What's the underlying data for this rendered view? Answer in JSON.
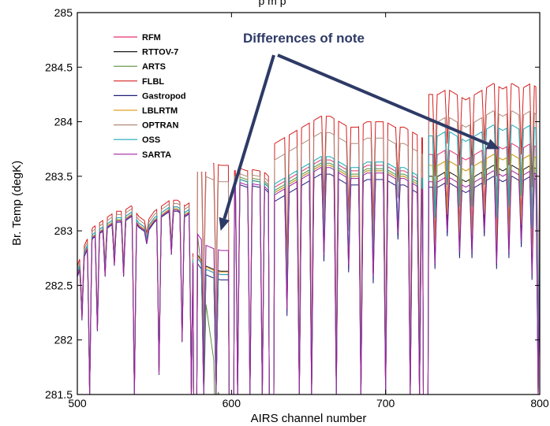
{
  "chart_data": {
    "type": "line",
    "title_fragment": "p   m   p",
    "xlabel": "AIRS channel number",
    "ylabel": "Br. Temp (degK)",
    "xlim": [
      500,
      800
    ],
    "ylim": [
      281.5,
      285
    ],
    "x_ticks": [
      500,
      600,
      700,
      800
    ],
    "y_ticks": [
      281.5,
      282,
      282.5,
      283,
      283.5,
      284,
      284.5,
      285
    ],
    "grid": false,
    "legend_position": "top-left",
    "annotation": {
      "text": "Differences of note",
      "arrow_targets": [
        [
          593,
          283.0
        ],
        [
          774,
          283.75
        ]
      ]
    },
    "base_segments": [
      {
        "x": [
          500,
          505,
          510,
          515,
          520,
          525,
          530,
          535,
          540,
          545,
          550,
          555,
          560,
          565,
          570,
          575
        ],
        "y": [
          282.6,
          282.8,
          282.95,
          283.0,
          283.05,
          283.1,
          283.1,
          283.15,
          283.05,
          283.0,
          283.1,
          283.15,
          283.2,
          283.2,
          283.15,
          283.2
        ]
      },
      {
        "x": [
          578,
          583,
          588,
          593,
          598
        ],
        "y": [
          282.75,
          282.65,
          282.62,
          282.6,
          282.6
        ]
      },
      {
        "x": [
          602,
          606,
          610,
          614,
          618,
          622,
          624
        ],
        "y": [
          283.45,
          283.47,
          283.45,
          283.46,
          283.45,
          283.43,
          283.4
        ]
      },
      {
        "x": [
          628,
          634,
          640,
          646,
          652,
          658,
          664,
          670,
          676,
          682,
          688,
          694,
          700,
          706,
          712,
          718,
          724
        ],
        "y": [
          283.35,
          283.4,
          283.45,
          283.5,
          283.55,
          283.6,
          283.6,
          283.55,
          283.5,
          283.5,
          283.55,
          283.55,
          283.55,
          283.5,
          283.5,
          283.45,
          283.4
        ]
      },
      {
        "x": [
          728,
          734,
          740,
          746,
          752,
          758,
          764,
          770,
          776,
          782,
          788,
          794,
          800
        ],
        "y": [
          283.55,
          283.55,
          283.6,
          283.55,
          283.5,
          283.55,
          283.6,
          283.65,
          283.6,
          283.65,
          283.6,
          283.65,
          283.6
        ]
      }
    ],
    "dips": [
      {
        "x": 503,
        "y": 282.2
      },
      {
        "x": 508,
        "y": 281.5
      },
      {
        "x": 513,
        "y": 282.1
      },
      {
        "x": 518,
        "y": 282.6
      },
      {
        "x": 524,
        "y": 282.7
      },
      {
        "x": 530,
        "y": 282.6
      },
      {
        "x": 537,
        "y": 281.5
      },
      {
        "x": 545,
        "y": 282.9
      },
      {
        "x": 553,
        "y": 281.7
      },
      {
        "x": 561,
        "y": 282.8
      },
      {
        "x": 568,
        "y": 282.0
      },
      {
        "x": 574,
        "y": 281.5
      },
      {
        "x": 582,
        "y": 281.5
      },
      {
        "x": 590,
        "y": 281.5
      },
      {
        "x": 604,
        "y": 281.5
      },
      {
        "x": 612,
        "y": 281.5
      },
      {
        "x": 620,
        "y": 281.5
      },
      {
        "x": 626,
        "y": 281.5
      },
      {
        "x": 636,
        "y": 282.3
      },
      {
        "x": 644,
        "y": 281.5
      },
      {
        "x": 652,
        "y": 281.5
      },
      {
        "x": 660,
        "y": 282.8
      },
      {
        "x": 668,
        "y": 281.5
      },
      {
        "x": 676,
        "y": 282.7
      },
      {
        "x": 684,
        "y": 281.5
      },
      {
        "x": 692,
        "y": 282.6
      },
      {
        "x": 700,
        "y": 281.5
      },
      {
        "x": 708,
        "y": 283.0
      },
      {
        "x": 716,
        "y": 281.5
      },
      {
        "x": 722,
        "y": 281.5
      },
      {
        "x": 726,
        "y": 281.5
      },
      {
        "x": 732,
        "y": 282.8
      },
      {
        "x": 740,
        "y": 283.1
      },
      {
        "x": 748,
        "y": 282.9
      },
      {
        "x": 756,
        "y": 282.9
      },
      {
        "x": 764,
        "y": 283.1
      },
      {
        "x": 772,
        "y": 282.8
      },
      {
        "x": 780,
        "y": 282.9
      },
      {
        "x": 788,
        "y": 283.0
      },
      {
        "x": 795,
        "y": 282.7
      },
      {
        "x": 799,
        "y": 281.5
      }
    ],
    "series": [
      {
        "name": "RFM",
        "color": "#e8336a"
      },
      {
        "name": "RTTOV-7",
        "color": "#1a1a1a"
      },
      {
        "name": "ARTS",
        "color": "#5a8f3c"
      },
      {
        "name": "FLBL",
        "color": "#d42020"
      },
      {
        "name": "Gastropod",
        "color": "#1f1f7a"
      },
      {
        "name": "LBLRTM",
        "color": "#e0a020"
      },
      {
        "name": "OPTRAN",
        "color": "#b08a7a"
      },
      {
        "name": "OSS",
        "color": "#18a8b8"
      },
      {
        "name": "SARTA",
        "color": "#a020a0"
      }
    ]
  }
}
